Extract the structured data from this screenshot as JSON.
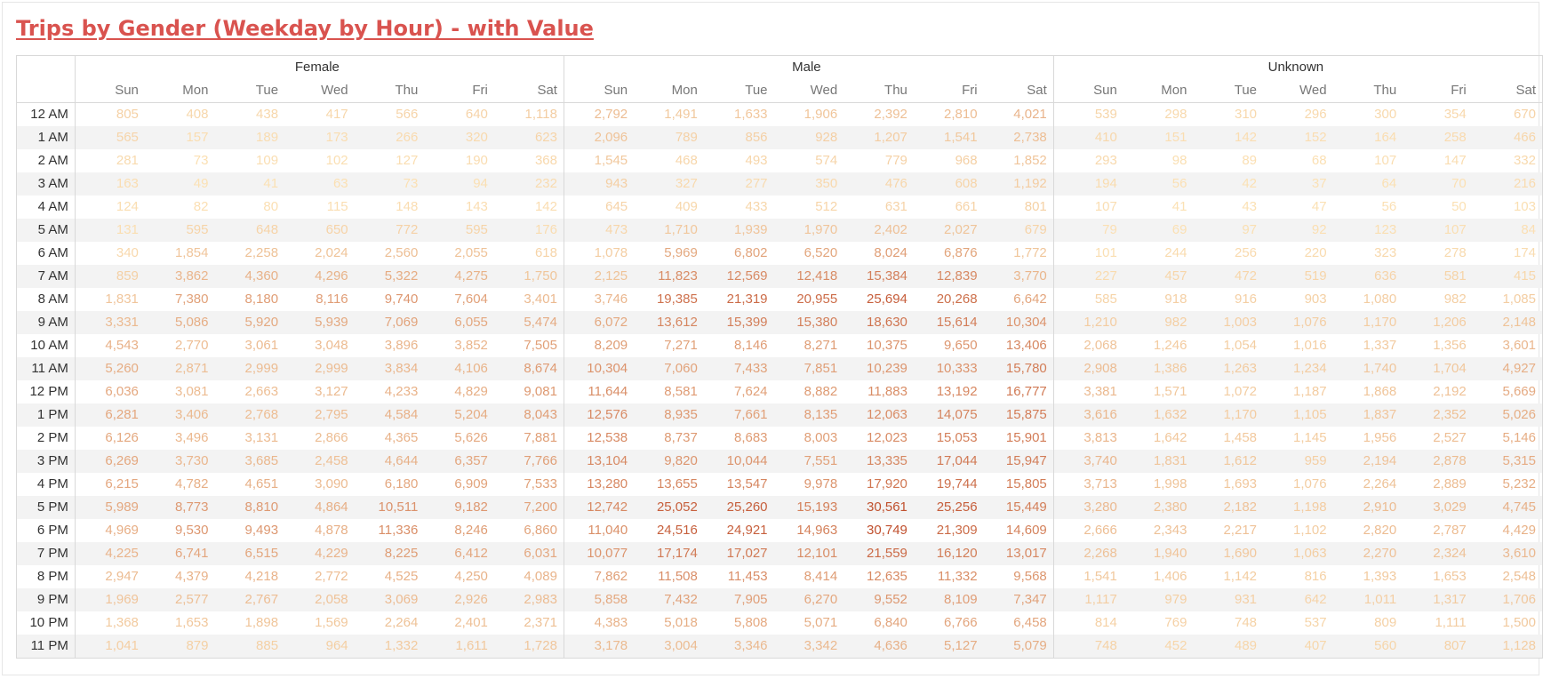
{
  "title": "Trips by Gender  (Weekday by Hour) - with Value",
  "colors": {
    "title": "#d9534f",
    "low": "#fde5b8",
    "high": "#c0502e"
  },
  "chart_data": {
    "type": "table",
    "title": "Trips by Gender  (Weekday by Hour) - with Value",
    "groups": [
      "Female",
      "Male",
      "Unknown"
    ],
    "days": [
      "Sun",
      "Mon",
      "Tue",
      "Wed",
      "Thu",
      "Fri",
      "Sat"
    ],
    "hours": [
      "12 AM",
      "1 AM",
      "2 AM",
      "3 AM",
      "4 AM",
      "5 AM",
      "6 AM",
      "7 AM",
      "8 AM",
      "9 AM",
      "10 AM",
      "11 AM",
      "12 PM",
      "1 PM",
      "2 PM",
      "3 PM",
      "4 PM",
      "5 PM",
      "6 PM",
      "7 PM",
      "8 PM",
      "9 PM",
      "10 PM",
      "11 PM"
    ],
    "series": [
      {
        "name": "Female",
        "values": [
          [
            805,
            408,
            438,
            417,
            566,
            640,
            1118
          ],
          [
            565,
            157,
            189,
            173,
            266,
            320,
            623
          ],
          [
            281,
            73,
            109,
            102,
            127,
            190,
            368
          ],
          [
            163,
            49,
            41,
            63,
            73,
            94,
            232
          ],
          [
            124,
            82,
            80,
            115,
            148,
            143,
            142
          ],
          [
            131,
            595,
            648,
            650,
            772,
            595,
            176
          ],
          [
            340,
            1854,
            2258,
            2024,
            2560,
            2055,
            618
          ],
          [
            859,
            3862,
            4360,
            4296,
            5322,
            4275,
            1750
          ],
          [
            1831,
            7380,
            8180,
            8116,
            9740,
            7604,
            3401
          ],
          [
            3331,
            5086,
            5920,
            5939,
            7069,
            6055,
            5474
          ],
          [
            4543,
            2770,
            3061,
            3048,
            3896,
            3852,
            7505
          ],
          [
            5260,
            2871,
            2999,
            2999,
            3834,
            4106,
            8674
          ],
          [
            6036,
            3081,
            2663,
            3127,
            4233,
            4829,
            9081
          ],
          [
            6281,
            3406,
            2768,
            2795,
            4584,
            5204,
            8043
          ],
          [
            6126,
            3496,
            3131,
            2866,
            4365,
            5626,
            7881
          ],
          [
            6269,
            3730,
            3685,
            2458,
            4644,
            6357,
            7766
          ],
          [
            6215,
            4782,
            4651,
            3090,
            6180,
            6909,
            7533
          ],
          [
            5989,
            8773,
            8810,
            4864,
            10511,
            9182,
            7200
          ],
          [
            4969,
            9530,
            9493,
            4878,
            11336,
            8246,
            6860
          ],
          [
            4225,
            6741,
            6515,
            4229,
            8225,
            6412,
            6031
          ],
          [
            2947,
            4379,
            4218,
            2772,
            4525,
            4250,
            4089
          ],
          [
            1969,
            2577,
            2767,
            2058,
            3069,
            2926,
            2983
          ],
          [
            1368,
            1653,
            1898,
            1569,
            2264,
            2401,
            2371
          ],
          [
            1041,
            879,
            885,
            964,
            1332,
            1611,
            1728
          ]
        ]
      },
      {
        "name": "Male",
        "values": [
          [
            2792,
            1491,
            1633,
            1906,
            2392,
            2810,
            4021
          ],
          [
            2096,
            789,
            856,
            928,
            1207,
            1541,
            2738
          ],
          [
            1545,
            468,
            493,
            574,
            779,
            968,
            1852
          ],
          [
            943,
            327,
            277,
            350,
            476,
            608,
            1192
          ],
          [
            645,
            409,
            433,
            512,
            631,
            661,
            801
          ],
          [
            473,
            1710,
            1939,
            1970,
            2402,
            2027,
            679
          ],
          [
            1078,
            5969,
            6802,
            6520,
            8024,
            6876,
            1772
          ],
          [
            2125,
            11823,
            12569,
            12418,
            15384,
            12839,
            3770
          ],
          [
            3746,
            19385,
            21319,
            20955,
            25694,
            20268,
            6642
          ],
          [
            6072,
            13612,
            15399,
            15380,
            18630,
            15614,
            10304
          ],
          [
            8209,
            7271,
            8146,
            8271,
            10375,
            9650,
            13406
          ],
          [
            10304,
            7060,
            7433,
            7851,
            10239,
            10333,
            15780
          ],
          [
            11644,
            8581,
            7624,
            8882,
            11883,
            13192,
            16777
          ],
          [
            12576,
            8935,
            7661,
            8135,
            12063,
            14075,
            15875
          ],
          [
            12538,
            8737,
            8683,
            8003,
            12023,
            15053,
            15901
          ],
          [
            13104,
            9820,
            10044,
            7551,
            13335,
            17044,
            15947
          ],
          [
            13280,
            13655,
            13547,
            9978,
            17920,
            19744,
            15805
          ],
          [
            12742,
            25052,
            25260,
            15193,
            30561,
            25256,
            15449
          ],
          [
            11040,
            24516,
            24921,
            14963,
            30749,
            21309,
            14609
          ],
          [
            10077,
            17174,
            17027,
            12101,
            21559,
            16120,
            13017
          ],
          [
            7862,
            11508,
            11453,
            8414,
            12635,
            11332,
            9568
          ],
          [
            5858,
            7432,
            7905,
            6270,
            9552,
            8109,
            7347
          ],
          [
            4383,
            5018,
            5808,
            5071,
            6840,
            6766,
            6458
          ],
          [
            3178,
            3004,
            3346,
            3342,
            4636,
            5127,
            5079
          ]
        ]
      },
      {
        "name": "Unknown",
        "values": [
          [
            539,
            298,
            310,
            296,
            300,
            354,
            670
          ],
          [
            410,
            151,
            142,
            152,
            164,
            258,
            466
          ],
          [
            293,
            98,
            89,
            68,
            107,
            147,
            332
          ],
          [
            194,
            56,
            42,
            37,
            64,
            70,
            216
          ],
          [
            107,
            41,
            43,
            47,
            56,
            50,
            103
          ],
          [
            79,
            69,
            97,
            92,
            123,
            107,
            84
          ],
          [
            101,
            244,
            256,
            220,
            323,
            278,
            174
          ],
          [
            227,
            457,
            472,
            519,
            636,
            581,
            415
          ],
          [
            585,
            918,
            916,
            903,
            1080,
            982,
            1085
          ],
          [
            1210,
            982,
            1003,
            1076,
            1170,
            1206,
            2148
          ],
          [
            2068,
            1246,
            1054,
            1016,
            1337,
            1356,
            3601
          ],
          [
            2908,
            1386,
            1263,
            1234,
            1740,
            1704,
            4927
          ],
          [
            3381,
            1571,
            1072,
            1187,
            1868,
            2192,
            5669
          ],
          [
            3616,
            1632,
            1170,
            1105,
            1837,
            2352,
            5026
          ],
          [
            3813,
            1642,
            1458,
            1145,
            1956,
            2527,
            5146
          ],
          [
            3740,
            1831,
            1612,
            959,
            2194,
            2878,
            5315
          ],
          [
            3713,
            1998,
            1693,
            1076,
            2264,
            2889,
            5232
          ],
          [
            3280,
            2380,
            2182,
            1198,
            2910,
            3029,
            4745
          ],
          [
            2666,
            2343,
            2217,
            1102,
            2820,
            2787,
            4429
          ],
          [
            2268,
            1940,
            1690,
            1063,
            2270,
            2324,
            3610
          ],
          [
            1541,
            1406,
            1142,
            816,
            1393,
            1653,
            2548
          ],
          [
            1117,
            979,
            931,
            642,
            1011,
            1317,
            1706
          ],
          [
            814,
            769,
            748,
            537,
            809,
            1111,
            1500
          ],
          [
            748,
            452,
            489,
            407,
            560,
            807,
            1128
          ]
        ]
      }
    ]
  }
}
